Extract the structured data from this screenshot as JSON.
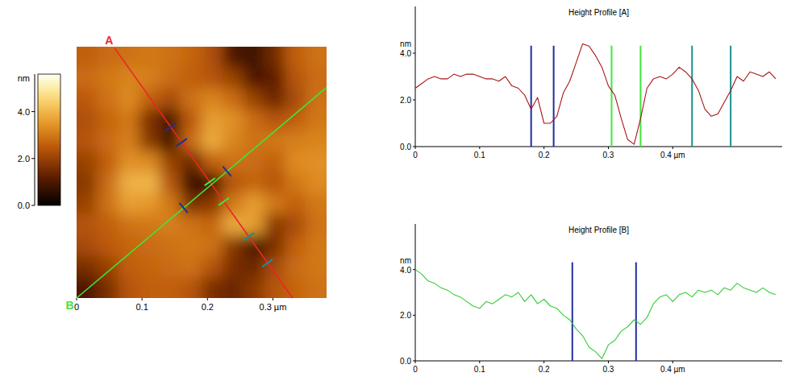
{
  "chart_data": [
    {
      "type": "heatmap",
      "xlim": [
        0,
        0.382
      ],
      "ylim": [
        0,
        0.382
      ],
      "xticks": [
        0,
        0.1,
        0.2,
        {
          "value": 0.3,
          "label": "0.3 µm"
        }
      ],
      "tick_labels": "x",
      "cells": [
        [
          2.6,
          2.8,
          2.9,
          3.0,
          2.9,
          2.7,
          2.3,
          1.0,
          0.8,
          1.5,
          2.6,
          2.9
        ],
        [
          2.8,
          3.0,
          3.2,
          3.1,
          2.8,
          2.6,
          2.4,
          2.0,
          1.0,
          1.2,
          2.4,
          2.8
        ],
        [
          2.5,
          2.9,
          3.3,
          2.6,
          2.2,
          2.9,
          3.2,
          2.8,
          2.0,
          1.4,
          2.2,
          2.9
        ],
        [
          2.3,
          2.7,
          3.0,
          1.6,
          0.9,
          2.5,
          3.6,
          3.4,
          2.8,
          2.4,
          2.6,
          3.0
        ],
        [
          2.4,
          2.8,
          3.1,
          1.8,
          0.8,
          2.8,
          3.8,
          3.2,
          2.9,
          3.0,
          3.1,
          3.2
        ],
        [
          2.0,
          2.6,
          3.4,
          3.3,
          2.0,
          1.4,
          2.6,
          2.9,
          2.8,
          2.6,
          3.3,
          3.4
        ],
        [
          1.8,
          2.8,
          3.9,
          4.0,
          2.4,
          0.6,
          0.9,
          2.4,
          2.7,
          2.4,
          3.0,
          3.3
        ],
        [
          2.0,
          2.9,
          3.6,
          3.5,
          3.0,
          1.6,
          1.8,
          3.0,
          3.6,
          3.0,
          2.6,
          3.0
        ],
        [
          2.4,
          2.6,
          2.9,
          3.0,
          3.1,
          2.9,
          2.7,
          3.8,
          3.6,
          1.8,
          2.2,
          2.9
        ],
        [
          2.2,
          2.5,
          2.7,
          2.8,
          2.9,
          3.0,
          2.9,
          1.8,
          0.9,
          1.6,
          2.6,
          3.0
        ],
        [
          1.6,
          2.0,
          2.6,
          2.7,
          2.8,
          2.9,
          2.4,
          1.6,
          1.4,
          2.2,
          2.8,
          3.0
        ],
        [
          1.0,
          1.6,
          2.4,
          2.6,
          2.6,
          2.4,
          1.6,
          1.4,
          1.8,
          2.4,
          2.7,
          2.9
        ]
      ],
      "colorbar_label": "nm",
      "colorbar_range": [
        0,
        5.6
      ],
      "colorbar_ticks": [
        {
          "value": 0,
          "label": "0.0"
        },
        {
          "value": 2,
          "label": "2.0"
        },
        {
          "value": 4,
          "label": "4.0"
        }
      ],
      "lines": [
        {
          "name": "A",
          "color": "#e8262a",
          "start": [
            0.058,
            0.38
          ],
          "end": [
            0.33,
            0.0
          ]
        },
        {
          "name": "B",
          "color": "#3ee63e",
          "start": [
            0,
            0
          ],
          "end": [
            0.382,
            0.32
          ]
        }
      ]
    },
    {
      "type": "line",
      "title": "Height Profile [A]",
      "y_label": "nm",
      "xlim": [
        0,
        0.57
      ],
      "ylim": [
        0,
        6
      ],
      "xticks": [
        0,
        0.1,
        0.2,
        0.3,
        {
          "value": 0.4,
          "label": "0.4 µm"
        }
      ],
      "yticks": [
        {
          "value": 0,
          "label": "0.0"
        },
        {
          "value": 2,
          "label": "2.0"
        },
        {
          "value": 4,
          "label": "4.0"
        }
      ],
      "grid": false,
      "x": [
        0,
        0.01,
        0.02,
        0.03,
        0.04,
        0.05,
        0.06,
        0.07,
        0.08,
        0.09,
        0.1,
        0.11,
        0.12,
        0.13,
        0.14,
        0.15,
        0.16,
        0.17,
        0.18,
        0.19,
        0.2,
        0.21,
        0.22,
        0.23,
        0.24,
        0.25,
        0.26,
        0.27,
        0.28,
        0.29,
        0.3,
        0.31,
        0.32,
        0.33,
        0.34,
        0.35,
        0.36,
        0.37,
        0.38,
        0.39,
        0.4,
        0.41,
        0.42,
        0.43,
        0.44,
        0.45,
        0.46,
        0.47,
        0.48,
        0.49,
        0.5,
        0.51,
        0.52,
        0.53,
        0.54,
        0.55,
        0.56
      ],
      "series": [
        {
          "color": "#a81414",
          "values": [
            2.5,
            2.7,
            2.9,
            3.0,
            2.9,
            2.9,
            3.1,
            3.0,
            3.1,
            3.1,
            3.0,
            2.9,
            2.9,
            2.8,
            3.0,
            2.6,
            2.5,
            2.2,
            1.6,
            2.1,
            1.0,
            1.0,
            1.3,
            2.3,
            2.8,
            3.6,
            4.4,
            4.3,
            3.9,
            3.4,
            2.6,
            2.2,
            1.2,
            0.3,
            0.1,
            1.2,
            2.5,
            2.9,
            3.0,
            2.9,
            3.1,
            3.4,
            3.2,
            2.9,
            2.4,
            1.6,
            1.3,
            1.4,
            1.9,
            2.4,
            3.0,
            2.8,
            3.2,
            3.1,
            3.0,
            3.2,
            2.9
          ]
        }
      ],
      "cursors": [
        {
          "x": 0.18,
          "color": "#1f2f9f"
        },
        {
          "x": 0.215,
          "color": "#1f2f9f"
        },
        {
          "x": 0.305,
          "color": "#3ee63e"
        },
        {
          "x": 0.35,
          "color": "#3ee63e"
        },
        {
          "x": 0.43,
          "color": "#1a9090"
        },
        {
          "x": 0.49,
          "color": "#1a9090"
        }
      ]
    },
    {
      "type": "line",
      "title": "Height Profile [B]",
      "y_label": "nm",
      "xlim": [
        0,
        0.57
      ],
      "ylim": [
        0,
        6
      ],
      "xticks": [
        0,
        0.1,
        0.2,
        0.3,
        {
          "value": 0.4,
          "label": "0.4 µm"
        }
      ],
      "yticks": [
        {
          "value": 0,
          "label": "0.0"
        },
        {
          "value": 2,
          "label": "2.0"
        },
        {
          "value": 4,
          "label": "4.0"
        }
      ],
      "grid": false,
      "x": [
        0,
        0.01,
        0.02,
        0.03,
        0.04,
        0.05,
        0.06,
        0.07,
        0.08,
        0.09,
        0.1,
        0.11,
        0.12,
        0.13,
        0.14,
        0.15,
        0.16,
        0.17,
        0.18,
        0.19,
        0.2,
        0.21,
        0.22,
        0.23,
        0.24,
        0.25,
        0.26,
        0.27,
        0.28,
        0.29,
        0.3,
        0.31,
        0.32,
        0.33,
        0.34,
        0.35,
        0.36,
        0.37,
        0.38,
        0.39,
        0.4,
        0.41,
        0.42,
        0.43,
        0.44,
        0.45,
        0.46,
        0.47,
        0.48,
        0.49,
        0.5,
        0.51,
        0.52,
        0.53,
        0.54,
        0.55,
        0.56
      ],
      "series": [
        {
          "color": "#33cc33",
          "values": [
            4.0,
            3.8,
            3.5,
            3.4,
            3.2,
            3.1,
            2.9,
            2.8,
            2.6,
            2.4,
            2.3,
            2.6,
            2.5,
            2.7,
            2.9,
            2.8,
            3.0,
            2.6,
            2.9,
            2.5,
            2.7,
            2.4,
            2.3,
            2.0,
            1.8,
            1.4,
            1.1,
            0.6,
            0.4,
            0.1,
            0.7,
            0.9,
            1.3,
            1.5,
            1.8,
            1.6,
            1.9,
            2.5,
            2.8,
            2.9,
            2.6,
            2.9,
            3.0,
            2.8,
            3.1,
            3.0,
            3.1,
            2.9,
            3.2,
            3.1,
            3.4,
            3.2,
            3.1,
            3.0,
            3.2,
            3.0,
            2.9
          ]
        }
      ],
      "cursors": [
        {
          "x": 0.244,
          "color": "#1f2f9f"
        },
        {
          "x": 0.343,
          "color": "#1f2f9f"
        }
      ]
    }
  ]
}
